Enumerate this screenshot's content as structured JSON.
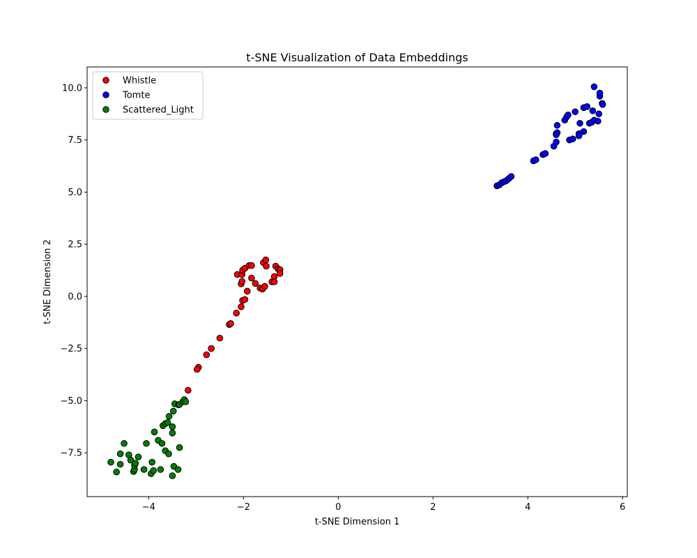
{
  "chart_data": {
    "type": "scatter",
    "title": "t-SNE Visualization of Data Embeddings",
    "xlabel": "t-SNE Dimension 1",
    "ylabel": "t-SNE Dimension 2",
    "xlim": [
      -5.3,
      6.1
    ],
    "ylim": [
      -9.6,
      11.0
    ],
    "xticks": [
      -4,
      -2,
      0,
      2,
      4,
      6
    ],
    "xtick_labels": [
      "−4",
      "−2",
      "0",
      "2",
      "4",
      "6"
    ],
    "yticks": [
      -7.5,
      -5.0,
      -2.5,
      0.0,
      2.5,
      5.0,
      7.5,
      10.0
    ],
    "ytick_labels": [
      "−7.5",
      "−5.0",
      "−2.5",
      "0.0",
      "2.5",
      "5.0",
      "7.5",
      "10.0"
    ],
    "grid": false,
    "legend_position": "top-left",
    "series": [
      {
        "name": "Whistle",
        "color": "#ff0000",
        "points": [
          [
            -3.17,
            -4.5
          ],
          [
            -2.95,
            -3.4
          ],
          [
            -2.98,
            -3.5
          ],
          [
            -2.78,
            -2.8
          ],
          [
            -2.68,
            -2.5
          ],
          [
            -2.5,
            -2.0
          ],
          [
            -2.3,
            -1.35
          ],
          [
            -2.27,
            -1.3
          ],
          [
            -2.15,
            -0.8
          ],
          [
            -2.05,
            -0.5
          ],
          [
            -2.02,
            -0.2
          ],
          [
            -1.97,
            -0.15
          ],
          [
            -2.05,
            0.6
          ],
          [
            -2.03,
            0.72
          ],
          [
            -1.92,
            0.25
          ],
          [
            -2.13,
            1.05
          ],
          [
            -2.03,
            1.05
          ],
          [
            -2.02,
            1.25
          ],
          [
            -1.97,
            1.35
          ],
          [
            -1.88,
            1.48
          ],
          [
            -1.83,
            1.48
          ],
          [
            -1.83,
            0.88
          ],
          [
            -1.75,
            0.62
          ],
          [
            -1.65,
            0.4
          ],
          [
            -1.6,
            0.35
          ],
          [
            -1.55,
            0.48
          ],
          [
            -1.58,
            1.62
          ],
          [
            -1.53,
            1.75
          ],
          [
            -1.52,
            1.45
          ],
          [
            -1.4,
            0.7
          ],
          [
            -1.35,
            0.95
          ],
          [
            -1.35,
            0.7
          ],
          [
            -1.32,
            1.45
          ],
          [
            -1.27,
            1.32
          ],
          [
            -1.23,
            1.28
          ],
          [
            -1.23,
            1.1
          ]
        ]
      },
      {
        "name": "Tomte",
        "color": "#0000ff",
        "points": [
          [
            3.35,
            5.3
          ],
          [
            3.4,
            5.35
          ],
          [
            3.45,
            5.45
          ],
          [
            3.5,
            5.5
          ],
          [
            3.55,
            5.55
          ],
          [
            3.6,
            5.65
          ],
          [
            3.65,
            5.75
          ],
          [
            4.12,
            6.5
          ],
          [
            4.17,
            6.55
          ],
          [
            4.32,
            6.8
          ],
          [
            4.37,
            6.85
          ],
          [
            4.55,
            7.2
          ],
          [
            4.6,
            7.4
          ],
          [
            4.6,
            7.8
          ],
          [
            4.62,
            7.85
          ],
          [
            4.6,
            7.75
          ],
          [
            4.62,
            8.2
          ],
          [
            4.78,
            8.45
          ],
          [
            4.82,
            8.6
          ],
          [
            4.85,
            8.7
          ],
          [
            4.88,
            7.5
          ],
          [
            4.95,
            7.55
          ],
          [
            5.0,
            8.85
          ],
          [
            5.08,
            7.8
          ],
          [
            5.1,
            8.3
          ],
          [
            5.08,
            7.7
          ],
          [
            5.18,
            7.9
          ],
          [
            5.18,
            9.05
          ],
          [
            5.25,
            9.1
          ],
          [
            5.3,
            8.3
          ],
          [
            5.35,
            8.35
          ],
          [
            5.37,
            8.9
          ],
          [
            5.4,
            8.45
          ],
          [
            5.4,
            10.05
          ],
          [
            5.48,
            8.4
          ],
          [
            5.5,
            8.75
          ],
          [
            5.52,
            9.6
          ],
          [
            5.52,
            9.75
          ],
          [
            5.57,
            9.25
          ],
          [
            5.58,
            9.2
          ]
        ]
      },
      {
        "name": "Scattered_Light",
        "color": "#008000",
        "points": [
          [
            -4.8,
            -7.95
          ],
          [
            -4.68,
            -8.42
          ],
          [
            -4.6,
            -8.05
          ],
          [
            -4.6,
            -7.55
          ],
          [
            -4.52,
            -7.05
          ],
          [
            -4.42,
            -7.6
          ],
          [
            -4.38,
            -7.85
          ],
          [
            -4.32,
            -8.4
          ],
          [
            -4.3,
            -8.3
          ],
          [
            -4.3,
            -8.1
          ],
          [
            -4.28,
            -8.0
          ],
          [
            -4.22,
            -7.7
          ],
          [
            -4.1,
            -8.3
          ],
          [
            -4.05,
            -7.05
          ],
          [
            -3.95,
            -8.5
          ],
          [
            -3.93,
            -7.95
          ],
          [
            -3.9,
            -8.35
          ],
          [
            -3.88,
            -6.5
          ],
          [
            -3.8,
            -6.9
          ],
          [
            -3.75,
            -8.3
          ],
          [
            -3.72,
            -7.05
          ],
          [
            -3.7,
            -6.2
          ],
          [
            -3.65,
            -7.4
          ],
          [
            -3.65,
            -6.1
          ],
          [
            -3.6,
            -6.05
          ],
          [
            -3.58,
            -7.55
          ],
          [
            -3.57,
            -5.75
          ],
          [
            -3.5,
            -6.25
          ],
          [
            -3.5,
            -6.55
          ],
          [
            -3.5,
            -8.6
          ],
          [
            -3.48,
            -5.5
          ],
          [
            -3.47,
            -8.15
          ],
          [
            -3.45,
            -5.15
          ],
          [
            -3.38,
            -8.3
          ],
          [
            -3.37,
            -5.2
          ],
          [
            -3.35,
            -5.18
          ],
          [
            -3.35,
            -7.25
          ],
          [
            -3.28,
            -5.05
          ],
          [
            -3.25,
            -4.95
          ],
          [
            -3.22,
            -5.05
          ]
        ]
      }
    ]
  }
}
